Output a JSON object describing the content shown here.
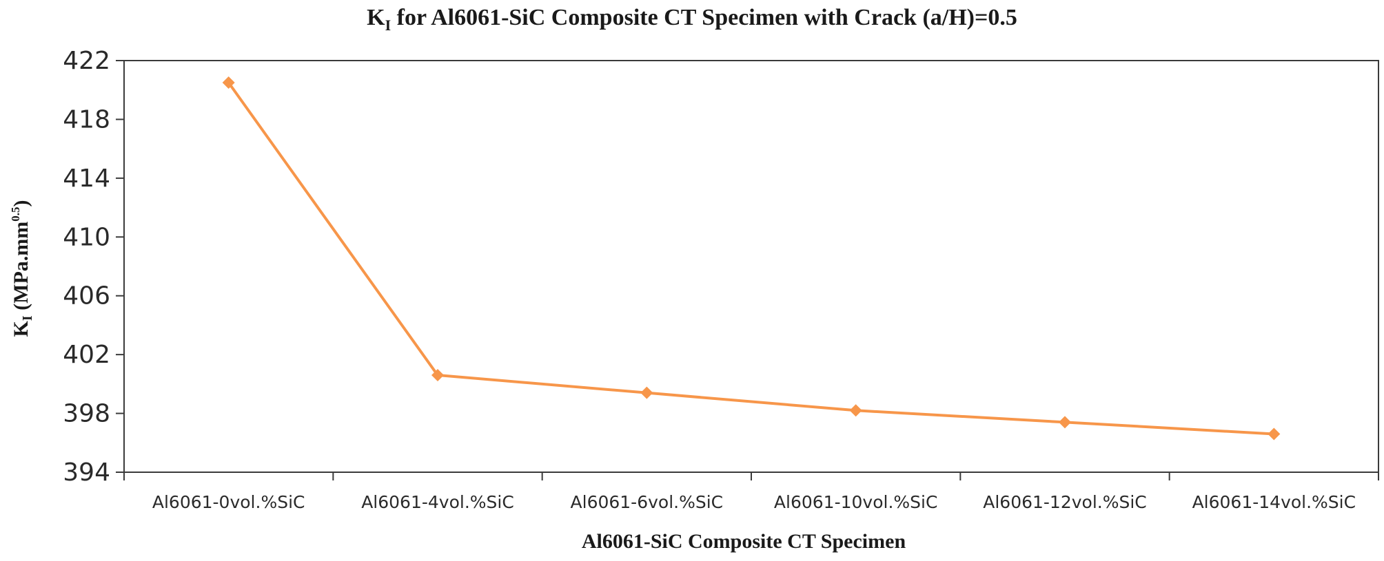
{
  "chart_data": {
    "type": "line",
    "title": {
      "main": "K",
      "sub": "I",
      "rest": " for Al6061-SiC Composite CT Specimen with Crack (a/H)=0.5"
    },
    "xlabel": "Al6061-SiC Composite CT Specimen",
    "ylabel": {
      "main": "K",
      "sub": "I",
      "unit": " (MPa.mm",
      "sup": "0.5",
      "close": ")"
    },
    "categories": [
      "Al6061-0vol.%SiC",
      "Al6061-4vol.%SiC",
      "Al6061-6vol.%SiC",
      "Al6061-10vol.%SiC",
      "Al6061-12vol.%SiC",
      "Al6061-14vol.%SiC"
    ],
    "series": [
      {
        "name": "KI",
        "values": [
          420.5,
          400.6,
          399.4,
          398.2,
          397.4,
          396.6
        ],
        "color": "#f7964a",
        "marker": "diamond"
      }
    ],
    "ylim": [
      394,
      422
    ],
    "yticks": [
      394,
      398,
      402,
      406,
      410,
      414,
      418,
      422
    ],
    "grid": false,
    "legend": "none"
  }
}
